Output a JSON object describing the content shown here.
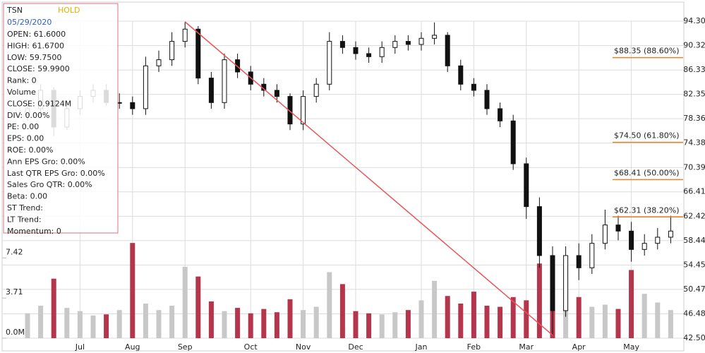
{
  "chart_data": {
    "type": "candlestick",
    "categories": [
      null,
      null,
      null,
      null,
      "Jul",
      null,
      null,
      null,
      "Aug",
      null,
      null,
      null,
      "Sep",
      null,
      null,
      null,
      null,
      "Oct",
      null,
      null,
      null,
      "Nov",
      null,
      null,
      null,
      "Dec",
      null,
      null,
      null,
      null,
      "Jan",
      null,
      null,
      null,
      "Feb",
      null,
      null,
      null,
      "Mar",
      null,
      null,
      null,
      "Apr",
      null,
      null,
      null,
      "May",
      null,
      null,
      null
    ],
    "opens": [
      79,
      80,
      83,
      77,
      80,
      82,
      83,
      81,
      81,
      80,
      87,
      88,
      91,
      93,
      85,
      81,
      88,
      86,
      84,
      83,
      82,
      77.5,
      82,
      84,
      91,
      90,
      89,
      88.5,
      90,
      91,
      90.5,
      91.5,
      92,
      87,
      84,
      83,
      80,
      78,
      71,
      64,
      56,
      47,
      56,
      54,
      58,
      61,
      60,
      57,
      58,
      59
    ],
    "highs": [
      81.5,
      84,
      83.5,
      81,
      83,
      84,
      84,
      82.5,
      82,
      88.5,
      89.5,
      92.5,
      94.2,
      93.5,
      86,
      89,
      89,
      87,
      85,
      84,
      82.5,
      83,
      85,
      92.5,
      92,
      91,
      90,
      91,
      92,
      92,
      92.5,
      94.1,
      92.5,
      88,
      85,
      84,
      81,
      79,
      72,
      65.5,
      57.5,
      57.5,
      58,
      59.5,
      63.5,
      62.5,
      61.5,
      59.5,
      60.5,
      62.5
    ],
    "lows": [
      78,
      79,
      75.5,
      76.5,
      79,
      81,
      80.5,
      80,
      79,
      79,
      86,
      87,
      90,
      84,
      80,
      80,
      85,
      83,
      82,
      81,
      76.5,
      76.5,
      81,
      83,
      89,
      88,
      87.5,
      87.5,
      89,
      89.5,
      89.5,
      90.5,
      86,
      83,
      82,
      79,
      77,
      70,
      62,
      54,
      43,
      46,
      52,
      53,
      57,
      58.5,
      55,
      56,
      57,
      58
    ],
    "closes": [
      80,
      83,
      77,
      80,
      82,
      83,
      81,
      81,
      80,
      87,
      88,
      91,
      93,
      85,
      81,
      88,
      86,
      84,
      83,
      82,
      77.5,
      82,
      84,
      91,
      90,
      89,
      88.5,
      90,
      91,
      90.5,
      91.5,
      92,
      87,
      84,
      83,
      80,
      78,
      71,
      64,
      56,
      47,
      56,
      54,
      58,
      61,
      60,
      57,
      58,
      59,
      60
    ],
    "volumes": [
      2.3,
      3.0,
      5.5,
      2.8,
      2.5,
      2.1,
      2.2,
      2.6,
      8.8,
      3.2,
      2.6,
      3.0,
      6.6,
      5.7,
      3.4,
      2.5,
      2.8,
      2.3,
      2.7,
      2.4,
      3.6,
      2.6,
      2.9,
      6.1,
      5.0,
      2.5,
      2.3,
      2.2,
      2.4,
      2.6,
      3.5,
      5.3,
      3.9,
      3.2,
      4.3,
      3.0,
      2.9,
      3.8,
      3.5,
      6.9,
      7.6,
      5.6,
      3.8,
      2.9,
      3.1,
      2.7,
      6.3,
      4.1,
      3.3,
      2.6
    ],
    "ylim": [
      42.5,
      94.3
    ],
    "yticks": [
      {
        "value": 94.3,
        "label": "94.30"
      },
      90.32,
      86.33,
      82.35,
      78.36,
      74.38,
      70.39,
      66.41,
      62.42,
      58.44,
      54.45,
      50.47,
      46.48,
      {
        "value": 42.5,
        "label": "42.50"
      }
    ],
    "y2lim": [
      0,
      29.3
    ],
    "y2ticks": [
      {
        "value": 0,
        "label": "0.0M"
      },
      3.71,
      7.42
    ],
    "grid": true,
    "up_color": "#ffffff",
    "down_color": "#111111",
    "volume_up_color": "#c8c8c8",
    "volume_down_color": "#b5354c",
    "fib_levels": [
      {
        "value": 88.35,
        "label": "$88.35 (88.60%)"
      },
      {
        "value": 74.5,
        "label": "$74.50 (61.80%)"
      },
      {
        "value": 68.41,
        "label": "$68.41 (50.00%)"
      },
      {
        "value": 62.31,
        "label": "$62.31 (38.20%)"
      }
    ],
    "fib_color": "#e8822a",
    "trend_line_color": "#e8555a"
  },
  "info_panel": {
    "symbol": "TSN",
    "rating": "HOLD",
    "date": "05/29/2020",
    "lines": [
      "OPEN: 61.6000",
      "HIGH: 61.6700",
      "LOW: 59.7500",
      "CLOSE: 59.9900",
      "Rank: 0",
      "Volume",
      "CLOSE: 0.9124M",
      "DIV: 0.00%",
      "PE: 0.00",
      "EPS: 0.00",
      "ROE: 0.00%",
      "Ann EPS Gro: 0.00%",
      "Last QTR EPS Gro: 0.00%",
      "Sales Gro QTR: 0.00%",
      "Beta: 0.00",
      "ST Trend:",
      "LT Trend:",
      "Momentum: 0"
    ]
  }
}
